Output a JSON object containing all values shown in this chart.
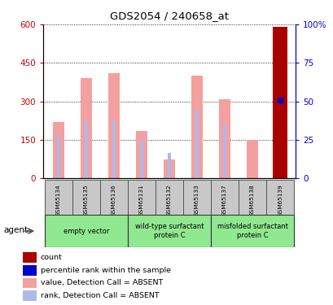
{
  "title": "GDS2054 / 240658_at",
  "samples": [
    "GSM65134",
    "GSM65135",
    "GSM65136",
    "GSM65131",
    "GSM65132",
    "GSM65133",
    "GSM65137",
    "GSM65138",
    "GSM65139"
  ],
  "value_bars": [
    220,
    390,
    410,
    185,
    75,
    400,
    310,
    150,
    590
  ],
  "rank_bars": [
    170,
    225,
    230,
    150,
    100,
    265,
    210,
    0,
    305
  ],
  "count_bar_idx": 8,
  "count_value": 590,
  "percentile_rank_value": 305,
  "ylim_left": [
    0,
    600
  ],
  "yticks_left": [
    0,
    150,
    300,
    450,
    600
  ],
  "ytick_labels_left": [
    "0",
    "150",
    "300",
    "450",
    "600"
  ],
  "yticks_right": [
    0,
    25,
    50,
    75,
    100
  ],
  "ytick_labels_right": [
    "0",
    "25",
    "50",
    "75",
    "100%"
  ],
  "value_bar_color": "#f4a0a0",
  "rank_bar_color": "#b0b8e8",
  "count_bar_color": "#aa0000",
  "percentile_dot_color": "#0000cc",
  "axis_left_color": "#cc0000",
  "axis_right_color": "#0000cc",
  "legend_items": [
    {
      "label": "count",
      "color": "#aa0000"
    },
    {
      "label": "percentile rank within the sample",
      "color": "#0000cc"
    },
    {
      "label": "value, Detection Call = ABSENT",
      "color": "#f4a0a0"
    },
    {
      "label": "rank, Detection Call = ABSENT",
      "color": "#b0b8e8"
    }
  ],
  "agent_label": "agent",
  "group_row_color": "#90e890",
  "sample_row_color": "#c8c8c8",
  "groups": [
    {
      "label": "empty vector",
      "start": 0,
      "end": 2
    },
    {
      "label": "wild-type surfactant\nprotein C",
      "start": 3,
      "end": 5
    },
    {
      "label": "misfolded surfactant\nprotein C",
      "start": 6,
      "end": 8
    }
  ]
}
